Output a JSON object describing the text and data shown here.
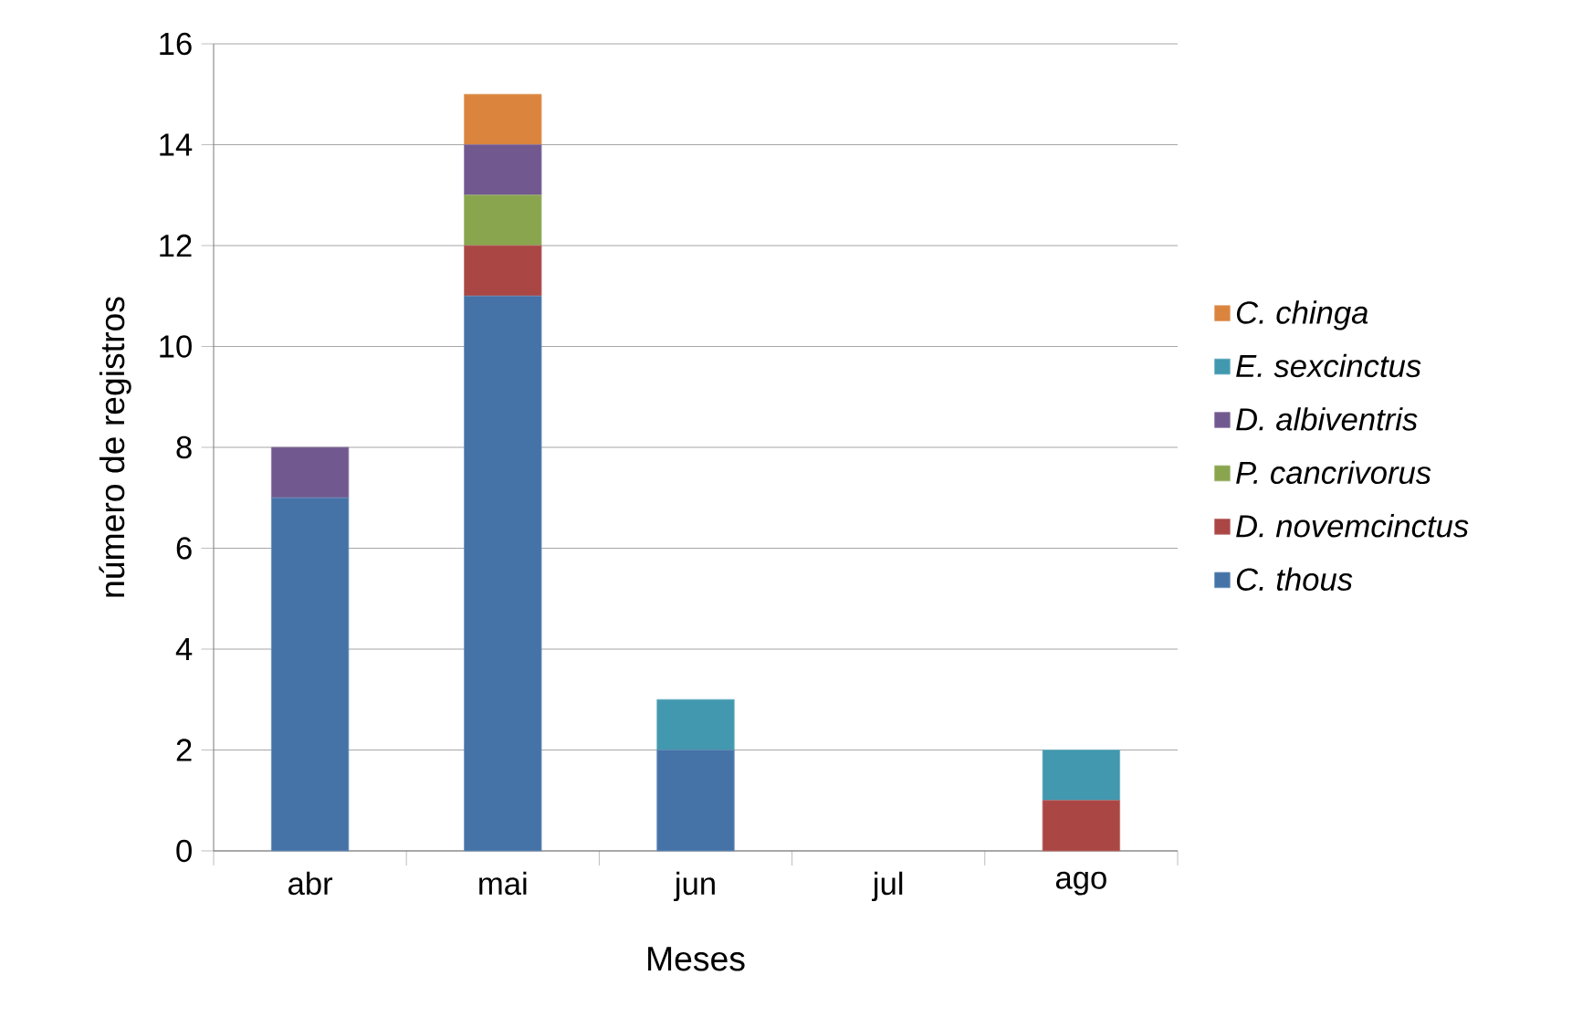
{
  "chart_data": {
    "type": "bar",
    "stacked": true,
    "xlabel": "Meses",
    "ylabel": "número de registros",
    "categories": [
      "abr",
      "mai",
      "jun",
      "jul",
      "ago"
    ],
    "series": [
      {
        "name": "C. thous",
        "color": "#4572a7",
        "values": [
          7,
          11,
          2,
          0,
          0
        ]
      },
      {
        "name": "D. novemcinctus",
        "color": "#aa4643",
        "values": [
          0,
          1,
          0,
          0,
          1
        ]
      },
      {
        "name": "P. cancrivorus",
        "color": "#89a54e",
        "values": [
          0,
          1,
          0,
          0,
          0
        ]
      },
      {
        "name": "D. albiventris",
        "color": "#71588f",
        "values": [
          1,
          1,
          0,
          0,
          0
        ]
      },
      {
        "name": "E. sexcinctus",
        "color": "#4198af",
        "values": [
          0,
          0,
          1,
          0,
          1
        ]
      },
      {
        "name": "C. chinga",
        "color": "#db843d",
        "values": [
          0,
          1,
          0,
          0,
          0
        ]
      }
    ],
    "ylim": [
      0,
      16
    ],
    "yticks": [
      0,
      2,
      4,
      6,
      8,
      10,
      12,
      14,
      16
    ],
    "grid": "y",
    "legend": "right"
  }
}
